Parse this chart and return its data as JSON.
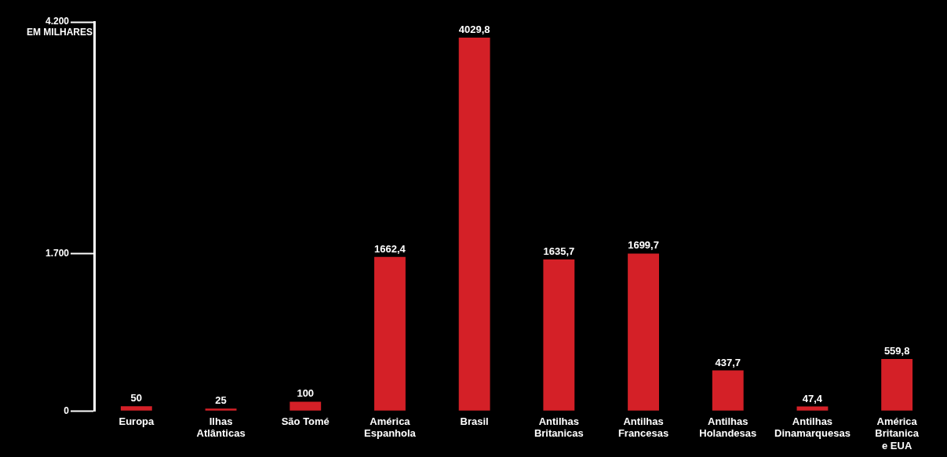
{
  "chart_data": {
    "type": "bar",
    "ylabel": "EM MILHARES",
    "categories": [
      "Europa",
      "Ilhas Atlânticas",
      "São Tomé",
      "América Espanhola",
      "Brasil",
      "Antilhas Britanicas",
      "Antilhas Francesas",
      "Antilhas Holandesas",
      "Antilhas Dinamarquesas",
      "América Britanica e EUA"
    ],
    "values": [
      50,
      25,
      100,
      1662.4,
      4029.8,
      1635.7,
      1699.7,
      437.7,
      47.4,
      559.8
    ],
    "value_labels": [
      "50",
      "25",
      "100",
      "1662,4",
      "4029,8",
      "1635,7",
      "1699,7",
      "437,7",
      "47,4",
      "559,8"
    ],
    "color": "#d42027",
    "ylim": [
      0,
      4200
    ],
    "yticks": [
      {
        "value": 0,
        "label": "0"
      },
      {
        "value": 1700,
        "label": "1.700"
      },
      {
        "value": 4200,
        "label": "4.200"
      }
    ],
    "legend": false
  }
}
